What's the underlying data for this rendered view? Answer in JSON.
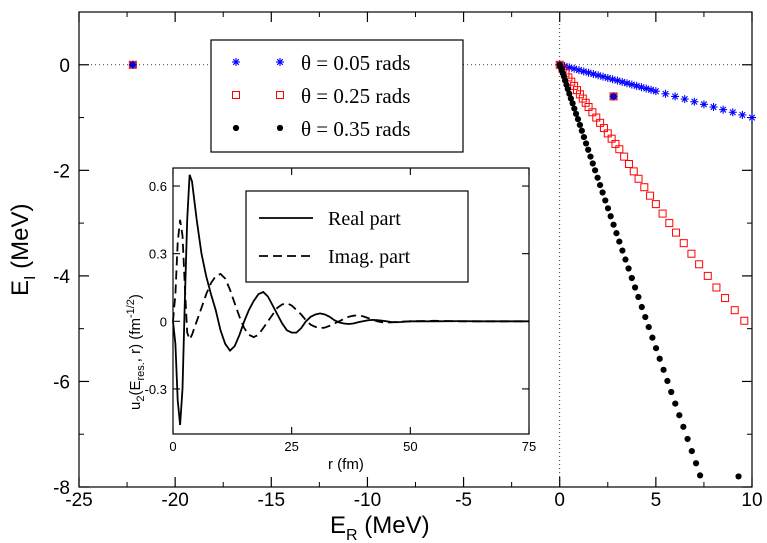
{
  "chart_data": [
    {
      "type": "scatter",
      "xlabel": "E",
      "xlabel_sub": "R",
      "xlabel_unit": " (MeV)",
      "ylabel": "E",
      "ylabel_sub": "I",
      "ylabel_unit": " (MeV)",
      "xlim": [
        -25,
        10
      ],
      "ylim": [
        -8,
        1
      ],
      "xticks": [
        -25,
        -20,
        -15,
        -10,
        -5,
        0,
        5,
        10
      ],
      "yticks": [
        -8,
        -6,
        -4,
        -2,
        0
      ],
      "xtick_labels": [
        "-25",
        "-20",
        "-15",
        "-10",
        "-5",
        "0",
        "5",
        "10"
      ],
      "ytick_labels": [
        "-8",
        "-6",
        "-4",
        "-2",
        "0"
      ],
      "grid": false,
      "reference_lines": {
        "x": 0,
        "y": 0,
        "style": "dotted"
      },
      "legend_position": "top-center",
      "series": [
        {
          "name": "θ = 0.05 rads",
          "marker": "asterisk",
          "color": "#0000ff",
          "points": [
            [
              0.0,
              0.0
            ],
            [
              0.25,
              -0.025
            ],
            [
              0.5,
              -0.05
            ],
            [
              0.75,
              -0.075
            ],
            [
              1.0,
              -0.1
            ],
            [
              1.25,
              -0.125
            ],
            [
              1.5,
              -0.15
            ],
            [
              1.75,
              -0.175
            ],
            [
              2.0,
              -0.2
            ],
            [
              2.25,
              -0.225
            ],
            [
              2.5,
              -0.25
            ],
            [
              2.75,
              -0.275
            ],
            [
              3.0,
              -0.3
            ],
            [
              3.25,
              -0.325
            ],
            [
              3.5,
              -0.35
            ],
            [
              3.75,
              -0.375
            ],
            [
              4.0,
              -0.4
            ],
            [
              4.25,
              -0.425
            ],
            [
              4.5,
              -0.45
            ],
            [
              4.75,
              -0.475
            ],
            [
              5.0,
              -0.5
            ],
            [
              5.5,
              -0.55
            ],
            [
              6.0,
              -0.6
            ],
            [
              6.5,
              -0.65
            ],
            [
              7.0,
              -0.7
            ],
            [
              7.5,
              -0.75
            ],
            [
              8.0,
              -0.8
            ],
            [
              8.5,
              -0.85
            ],
            [
              9.0,
              -0.9
            ],
            [
              9.5,
              -0.95
            ],
            [
              10.0,
              -1.0
            ]
          ]
        },
        {
          "name": "θ = 0.25 rads",
          "marker": "open-square",
          "color": "#ff0000",
          "points": [
            [
              0.0,
              0.0
            ],
            [
              0.15,
              -0.08
            ],
            [
              0.3,
              -0.16
            ],
            [
              0.45,
              -0.24
            ],
            [
              0.6,
              -0.32
            ],
            [
              0.75,
              -0.4
            ],
            [
              0.9,
              -0.48
            ],
            [
              1.05,
              -0.56
            ],
            [
              1.2,
              -0.64
            ],
            [
              1.35,
              -0.72
            ],
            [
              1.5,
              -0.8
            ],
            [
              1.7,
              -0.9
            ],
            [
              1.9,
              -1.0
            ],
            [
              2.1,
              -1.1
            ],
            [
              2.3,
              -1.2
            ],
            [
              2.5,
              -1.3
            ],
            [
              2.7,
              -1.4
            ],
            [
              2.9,
              -1.5
            ],
            [
              3.1,
              -1.6
            ],
            [
              3.35,
              -1.74
            ],
            [
              3.6,
              -1.88
            ],
            [
              3.85,
              -2.02
            ],
            [
              4.1,
              -2.16
            ],
            [
              4.4,
              -2.32
            ],
            [
              4.7,
              -2.48
            ],
            [
              5.0,
              -2.64
            ],
            [
              5.35,
              -2.82
            ],
            [
              5.7,
              -3.0
            ],
            [
              6.05,
              -3.18
            ],
            [
              6.45,
              -3.38
            ],
            [
              6.85,
              -3.58
            ],
            [
              7.25,
              -3.78
            ],
            [
              7.7,
              -4.0
            ],
            [
              8.15,
              -4.22
            ],
            [
              8.6,
              -4.42
            ],
            [
              9.1,
              -4.65
            ],
            [
              9.6,
              -4.85
            ]
          ]
        },
        {
          "name": "θ = 0.35 rads",
          "marker": "filled-circle",
          "color": "#000000",
          "points": [
            [
              0.0,
              0.0
            ],
            [
              0.05,
              -0.05
            ],
            [
              0.1,
              -0.1
            ],
            [
              0.16,
              -0.16
            ],
            [
              0.22,
              -0.22
            ],
            [
              0.28,
              -0.3
            ],
            [
              0.35,
              -0.38
            ],
            [
              0.42,
              -0.46
            ],
            [
              0.5,
              -0.55
            ],
            [
              0.58,
              -0.64
            ],
            [
              0.67,
              -0.73
            ],
            [
              0.76,
              -0.83
            ],
            [
              0.85,
              -0.93
            ],
            [
              0.95,
              -1.03
            ],
            [
              1.05,
              -1.14
            ],
            [
              1.15,
              -1.25
            ],
            [
              1.26,
              -1.37
            ],
            [
              1.37,
              -1.49
            ],
            [
              1.48,
              -1.61
            ],
            [
              1.6,
              -1.74
            ],
            [
              1.72,
              -1.87
            ],
            [
              1.84,
              -2.0
            ],
            [
              1.97,
              -2.14
            ],
            [
              2.1,
              -2.28
            ],
            [
              2.23,
              -2.42
            ],
            [
              2.37,
              -2.57
            ],
            [
              2.51,
              -2.72
            ],
            [
              2.65,
              -2.87
            ],
            [
              2.8,
              -3.03
            ],
            [
              2.95,
              -3.19
            ],
            [
              3.1,
              -3.35
            ],
            [
              3.26,
              -3.52
            ],
            [
              3.42,
              -3.69
            ],
            [
              3.58,
              -3.86
            ],
            [
              3.75,
              -4.04
            ],
            [
              3.92,
              -4.22
            ],
            [
              4.09,
              -4.4
            ],
            [
              4.27,
              -4.59
            ],
            [
              4.45,
              -4.78
            ],
            [
              4.63,
              -4.97
            ],
            [
              4.82,
              -5.17
            ],
            [
              5.01,
              -5.37
            ],
            [
              5.2,
              -5.57
            ],
            [
              5.4,
              -5.78
            ],
            [
              5.6,
              -5.99
            ],
            [
              5.8,
              -6.2
            ],
            [
              6.01,
              -6.42
            ],
            [
              6.22,
              -6.64
            ],
            [
              6.43,
              -6.86
            ],
            [
              6.65,
              -7.09
            ],
            [
              6.87,
              -7.32
            ],
            [
              7.09,
              -7.55
            ],
            [
              7.3,
              -7.78
            ],
            [
              9.3,
              -7.8
            ]
          ]
        }
      ],
      "resonance_markers": [
        [
          -22.2,
          0.0
        ],
        [
          2.8,
          -0.6
        ]
      ],
      "legend": [
        {
          "label": "θ = 0.05 rads",
          "marker": "asterisk",
          "color": "#0000ff"
        },
        {
          "label": "θ = 0.25 rads",
          "marker": "open-square",
          "color": "#ff0000"
        },
        {
          "label": "θ = 0.35 rads",
          "marker": "filled-circle",
          "color": "#000000"
        }
      ]
    },
    {
      "type": "line",
      "inset": true,
      "xlabel": "r (fm)",
      "ylabel": "u",
      "ylabel_sub": "2",
      "ylabel_mid": "(E",
      "ylabel_sub2": "res.",
      "ylabel_tail": ", r) (fm",
      "ylabel_sup": "-1/2",
      "ylabel_close": ")",
      "xlim": [
        0,
        75
      ],
      "ylim": [
        -0.5,
        0.68
      ],
      "xticks": [
        0,
        25,
        50,
        75
      ],
      "yticks": [
        -0.3,
        0,
        0.3,
        0.6
      ],
      "xtick_labels": [
        "0",
        "25",
        "50",
        "75"
      ],
      "ytick_labels": [
        "-0.3",
        "0",
        "0.3",
        "0.6"
      ],
      "legend_position": "top-right",
      "series": [
        {
          "name": "Real part",
          "style": "solid",
          "color": "#000000",
          "points": [
            [
              0,
              0
            ],
            [
              0.5,
              -0.1
            ],
            [
              1,
              -0.35
            ],
            [
              1.5,
              -0.46
            ],
            [
              2,
              -0.3
            ],
            [
              2.5,
              0.1
            ],
            [
              3,
              0.45
            ],
            [
              3.5,
              0.65
            ],
            [
              4,
              0.62
            ],
            [
              5,
              0.45
            ],
            [
              6,
              0.3
            ],
            [
              7,
              0.2
            ],
            [
              8,
              0.12
            ],
            [
              9,
              0.05
            ],
            [
              10,
              -0.04
            ],
            [
              11,
              -0.1
            ],
            [
              12,
              -0.13
            ],
            [
              13,
              -0.11
            ],
            [
              14,
              -0.06
            ],
            [
              15,
              0.0
            ],
            [
              16,
              0.05
            ],
            [
              17,
              0.09
            ],
            [
              18,
              0.12
            ],
            [
              19,
              0.13
            ],
            [
              20,
              0.11
            ],
            [
              21,
              0.07
            ],
            [
              22,
              0.03
            ],
            [
              23,
              -0.01
            ],
            [
              24,
              -0.04
            ],
            [
              25,
              -0.05
            ],
            [
              26,
              -0.05
            ],
            [
              27,
              -0.03
            ],
            [
              28,
              0.0
            ],
            [
              29,
              0.02
            ],
            [
              30,
              0.03
            ],
            [
              31,
              0.035
            ],
            [
              32,
              0.03
            ],
            [
              33,
              0.02
            ],
            [
              34,
              0.005
            ],
            [
              35,
              -0.005
            ],
            [
              36,
              -0.01
            ],
            [
              37,
              -0.012
            ],
            [
              38,
              -0.01
            ],
            [
              39,
              -0.004
            ],
            [
              40,
              0.0
            ],
            [
              41,
              0.004
            ],
            [
              42,
              0.006
            ],
            [
              43,
              0.005
            ],
            [
              44,
              0.003
            ],
            [
              45,
              0.0
            ],
            [
              46,
              -0.003
            ],
            [
              47,
              -0.004
            ],
            [
              48,
              -0.003
            ],
            [
              50,
              0.0
            ],
            [
              55,
              0.0
            ],
            [
              60,
              0.001
            ],
            [
              65,
              0.0
            ],
            [
              70,
              0.0
            ],
            [
              75,
              0.0
            ]
          ]
        },
        {
          "name": "Imag. part",
          "style": "dashed",
          "color": "#000000",
          "points": [
            [
              0,
              0
            ],
            [
              0.5,
              0.12
            ],
            [
              1,
              0.35
            ],
            [
              1.5,
              0.45
            ],
            [
              2,
              0.38
            ],
            [
              2.5,
              0.15
            ],
            [
              3,
              -0.05
            ],
            [
              3.5,
              -0.08
            ],
            [
              4,
              -0.06
            ],
            [
              5,
              0.0
            ],
            [
              6,
              0.06
            ],
            [
              7,
              0.12
            ],
            [
              8,
              0.17
            ],
            [
              9,
              0.2
            ],
            [
              10,
              0.21
            ],
            [
              11,
              0.19
            ],
            [
              12,
              0.14
            ],
            [
              13,
              0.08
            ],
            [
              14,
              0.02
            ],
            [
              15,
              -0.03
            ],
            [
              16,
              -0.06
            ],
            [
              17,
              -0.07
            ],
            [
              18,
              -0.06
            ],
            [
              19,
              -0.03
            ],
            [
              20,
              0.0
            ],
            [
              21,
              0.03
            ],
            [
              22,
              0.06
            ],
            [
              23,
              0.075
            ],
            [
              24,
              0.08
            ],
            [
              25,
              0.07
            ],
            [
              26,
              0.05
            ],
            [
              27,
              0.03
            ],
            [
              28,
              0.005
            ],
            [
              29,
              -0.015
            ],
            [
              30,
              -0.025
            ],
            [
              31,
              -0.03
            ],
            [
              32,
              -0.028
            ],
            [
              33,
              -0.02
            ],
            [
              34,
              -0.01
            ],
            [
              35,
              0.0
            ],
            [
              36,
              0.01
            ],
            [
              37,
              0.02
            ],
            [
              38,
              0.025
            ],
            [
              39,
              0.026
            ],
            [
              40,
              0.022
            ],
            [
              41,
              0.015
            ],
            [
              42,
              0.008
            ],
            [
              43,
              0.0
            ],
            [
              44,
              -0.004
            ],
            [
              45,
              -0.006
            ],
            [
              46,
              -0.005
            ],
            [
              48,
              -0.002
            ],
            [
              50,
              0.0
            ],
            [
              55,
              0.002
            ],
            [
              60,
              0.0
            ],
            [
              65,
              0.0
            ],
            [
              70,
              0.0
            ],
            [
              75,
              0.0
            ]
          ]
        }
      ],
      "legend": [
        {
          "label": "Real part",
          "style": "solid"
        },
        {
          "label": "Imag. part",
          "style": "dashed"
        }
      ]
    }
  ]
}
